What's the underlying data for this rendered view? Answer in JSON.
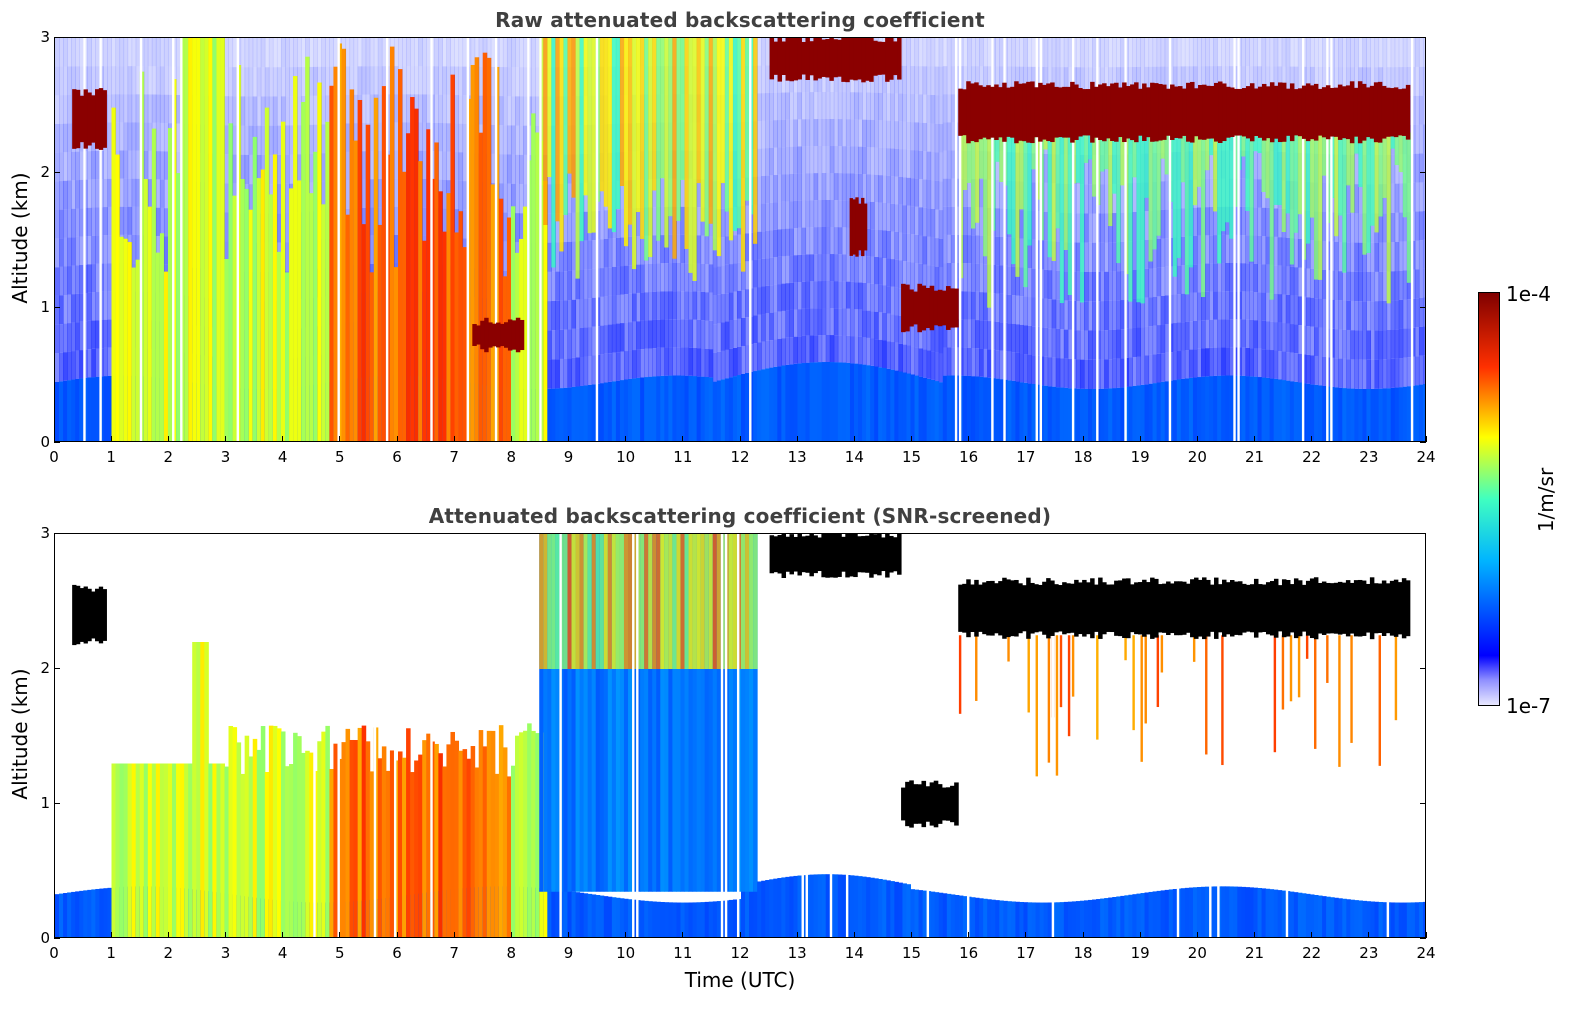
{
  "chart_data": [
    {
      "type": "heatmap",
      "title": "Raw attenuated backscattering coefficient",
      "xlabel": "",
      "ylabel": "Altitude (km)",
      "xlim": [
        0,
        24
      ],
      "ylim": [
        0,
        3
      ],
      "x_ticks": [
        "0",
        "1",
        "2",
        "3",
        "4",
        "5",
        "6",
        "7",
        "8",
        "9",
        "10",
        "11",
        "12",
        "13",
        "14",
        "15",
        "16",
        "17",
        "18",
        "19",
        "20",
        "21",
        "22",
        "23",
        "24"
      ],
      "y_ticks": [
        "0",
        "1",
        "2",
        "3"
      ],
      "features": [
        {
          "name": "boundary-layer",
          "x": [
            0,
            24
          ],
          "y": [
            0,
            0.5
          ],
          "level": "low"
        },
        {
          "name": "early-cloud-layer",
          "x": [
            0.3,
            0.9
          ],
          "y": [
            2.2,
            2.6
          ],
          "level": "high"
        },
        {
          "name": "fallstreaks-morning",
          "x": [
            1,
            8.5
          ],
          "y": [
            0,
            3
          ],
          "level": "medium"
        },
        {
          "name": "cloud-0800",
          "x": [
            7.3,
            8.2
          ],
          "y": [
            0.7,
            0.9
          ],
          "level": "high"
        },
        {
          "name": "high-cloud-1230",
          "x": [
            12.5,
            14.8
          ],
          "y": [
            2.7,
            3
          ],
          "level": "high"
        },
        {
          "name": "cloud-1400",
          "x": [
            13.9,
            14.2
          ],
          "y": [
            1.4,
            1.8
          ],
          "level": "high"
        },
        {
          "name": "cloud-1500",
          "x": [
            14.8,
            15.8
          ],
          "y": [
            0.85,
            1.15
          ],
          "level": "high"
        },
        {
          "name": "cloud-layer-afternoon",
          "x": [
            15.8,
            23.7
          ],
          "y": [
            2.25,
            2.65
          ],
          "level": "high"
        }
      ]
    },
    {
      "type": "heatmap",
      "title": "Attenuated backscattering coefficient (SNR-screened)",
      "xlabel": "Time (UTC)",
      "ylabel": "Altitude (km)",
      "xlim": [
        0,
        24
      ],
      "ylim": [
        0,
        3
      ],
      "x_ticks": [
        "0",
        "1",
        "2",
        "3",
        "4",
        "5",
        "6",
        "7",
        "8",
        "9",
        "10",
        "11",
        "12",
        "13",
        "14",
        "15",
        "16",
        "17",
        "18",
        "19",
        "20",
        "21",
        "22",
        "23",
        "24"
      ],
      "y_ticks": [
        "0",
        "1",
        "2",
        "3"
      ],
      "features": [
        {
          "name": "boundary-layer",
          "x": [
            0,
            24
          ],
          "y": [
            0,
            0.4
          ],
          "level": "low"
        },
        {
          "name": "early-cloud-layer",
          "x": [
            0.3,
            0.9
          ],
          "y": [
            2.2,
            2.6
          ],
          "level": "saturated"
        },
        {
          "name": "fallstreaks-morning",
          "x": [
            1,
            8.5
          ],
          "y": [
            0,
            1.6
          ],
          "level": "medium"
        },
        {
          "name": "noisy-region",
          "x": [
            8.3,
            12.3
          ],
          "y": [
            0,
            3
          ],
          "level": "medium"
        },
        {
          "name": "high-cloud-1230",
          "x": [
            12.5,
            14.8
          ],
          "y": [
            2.7,
            3
          ],
          "level": "saturated"
        },
        {
          "name": "cloud-1500",
          "x": [
            14.8,
            15.8
          ],
          "y": [
            0.85,
            1.15
          ],
          "level": "saturated"
        },
        {
          "name": "cloud-layer-afternoon",
          "x": [
            15.8,
            23.7
          ],
          "y": [
            2.25,
            2.65
          ],
          "level": "saturated"
        }
      ]
    }
  ],
  "colorbar": {
    "label": "1/m/sr",
    "max_label": "1e-4",
    "min_label": "1e-7",
    "colormap": "jet",
    "colors": [
      "#e8e8ff",
      "#0000ff",
      "#00ffff",
      "#ffff00",
      "#ff0000",
      "#800000"
    ]
  }
}
